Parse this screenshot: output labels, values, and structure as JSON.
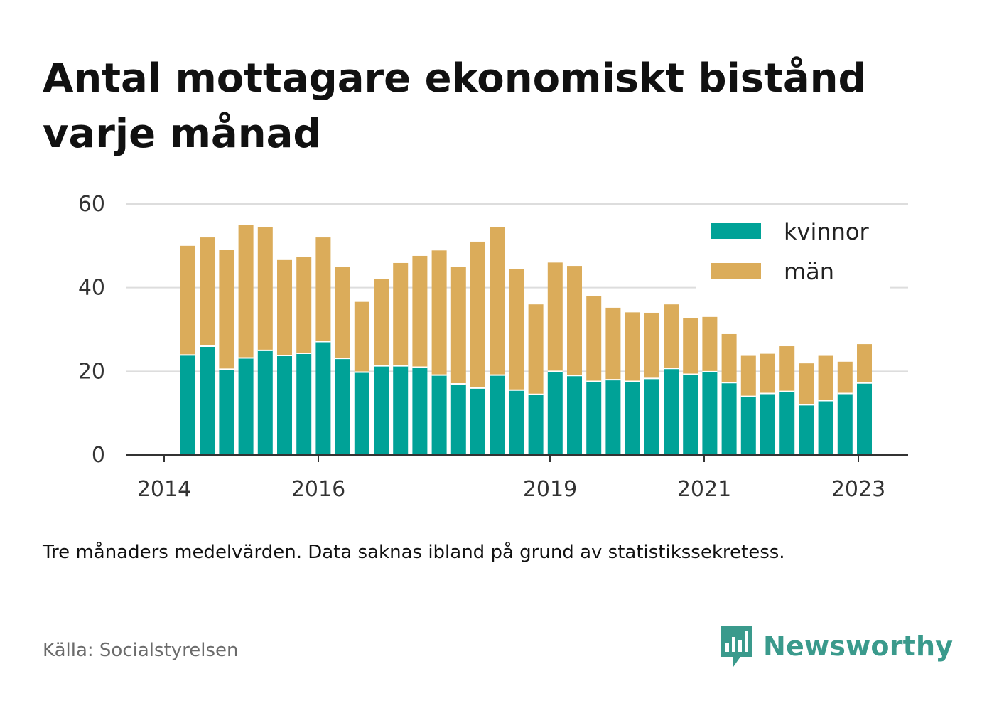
{
  "title": "Antal mottagare ekonomiskt bistånd varje månad",
  "note": "Tre månaders medelvärden. Data saknas ibland på grund av statistikssekretess.",
  "source": "Källa: Socialstyrelsen",
  "brand": {
    "name": "Newsworthy",
    "icon": "newsworthy-logo-icon",
    "color": "#3a9a8c"
  },
  "colors": {
    "kvinnor": "#00a297",
    "man": "#dbac5a",
    "grid": "#dddddd",
    "axis": "#333333"
  },
  "chart_data": {
    "type": "bar",
    "stacked": true,
    "title": "Antal mottagare ekonomiskt bistånd varje månad",
    "xlabel": "",
    "ylabel": "",
    "ylim": [
      0,
      60
    ],
    "yticks": [
      0,
      20,
      40,
      60
    ],
    "xticks": [
      "2014",
      "2016",
      "2019",
      "2021",
      "2023"
    ],
    "grid": true,
    "legend_position": "top-right",
    "series": [
      {
        "name": "kvinnor",
        "values": [
          23.9,
          26.0,
          20.5,
          23.2,
          25.0,
          23.8,
          24.3,
          27.1,
          23.1,
          19.8,
          21.3,
          21.3,
          21.0,
          19.1,
          17.0,
          16.0,
          19.1,
          15.5,
          14.5,
          20.0,
          19.0,
          17.6,
          18.0,
          17.6,
          18.3,
          20.7,
          19.3,
          19.9,
          17.3,
          14.0,
          14.7,
          15.2,
          12.0,
          13.0,
          14.7,
          17.2
        ]
      },
      {
        "name": "män",
        "values": [
          26.1,
          26.0,
          28.5,
          31.8,
          29.5,
          22.8,
          23.0,
          24.9,
          21.9,
          16.8,
          20.7,
          24.6,
          26.6,
          29.8,
          28.0,
          35.0,
          35.4,
          29.0,
          21.5,
          26.0,
          26.2,
          20.4,
          17.2,
          16.5,
          15.7,
          15.3,
          13.4,
          13.1,
          11.6,
          9.7,
          9.5,
          10.8,
          9.9,
          10.7,
          7.6,
          9.3
        ]
      }
    ]
  }
}
